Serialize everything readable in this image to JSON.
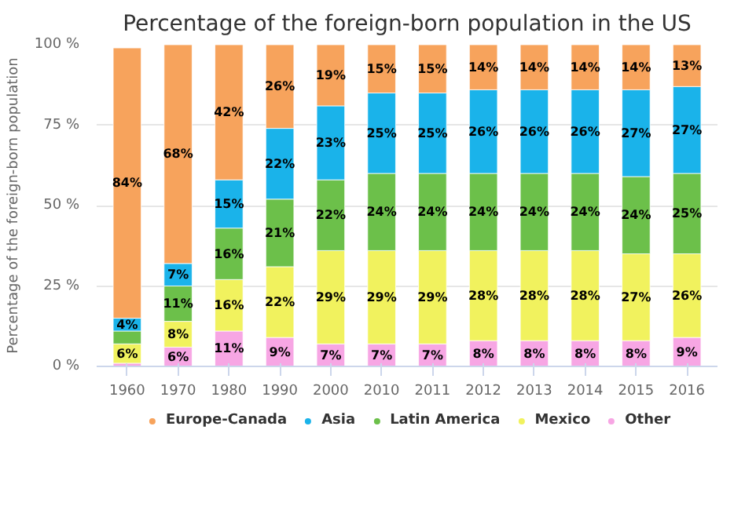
{
  "chart_data": {
    "type": "bar",
    "stacked": true,
    "title": "Percentage of the foreign-born population in the US",
    "ylabel": "Percentage of the foreign-born population",
    "categories": [
      "1960",
      "1970",
      "1980",
      "1990",
      "2000",
      "2010",
      "2011",
      "2012",
      "2013",
      "2014",
      "2015",
      "2016"
    ],
    "series": [
      {
        "name": "Other",
        "color": "#f7a6e4",
        "values": [
          1,
          6,
          11,
          9,
          7,
          7,
          7,
          8,
          8,
          8,
          8,
          9
        ],
        "value_labels": [
          null,
          "6%",
          "11%",
          "9%",
          "7%",
          "7%",
          "7%",
          "8%",
          "8%",
          "8%",
          "8%",
          "9%"
        ]
      },
      {
        "name": "Mexico",
        "color": "#f1f25e",
        "values": [
          6,
          8,
          16,
          22,
          29,
          29,
          29,
          28,
          28,
          28,
          27,
          26
        ],
        "value_labels": [
          "6%",
          "8%",
          "16%",
          "22%",
          "29%",
          "29%",
          "29%",
          "28%",
          "28%",
          "28%",
          "27%",
          "26%"
        ]
      },
      {
        "name": "Latin America",
        "color": "#6cc04a",
        "values": [
          4,
          11,
          16,
          21,
          22,
          24,
          24,
          24,
          24,
          24,
          24,
          25
        ],
        "value_labels": [
          null,
          "11%",
          "16%",
          "21%",
          "22%",
          "24%",
          "24%",
          "24%",
          "24%",
          "24%",
          "24%",
          "25%"
        ]
      },
      {
        "name": "Asia",
        "color": "#1ab3ea",
        "values": [
          4,
          7,
          15,
          22,
          23,
          25,
          25,
          26,
          26,
          26,
          27,
          27
        ],
        "value_labels": [
          "4%",
          "7%",
          "15%",
          "22%",
          "23%",
          "25%",
          "25%",
          "26%",
          "26%",
          "26%",
          "27%",
          "27%"
        ]
      },
      {
        "name": "Europe-Canada",
        "color": "#f7a35c",
        "values": [
          84,
          68,
          42,
          26,
          19,
          15,
          15,
          14,
          14,
          14,
          14,
          13
        ],
        "value_labels": [
          "84%",
          "68%",
          "42%",
          "26%",
          "19%",
          "15%",
          "15%",
          "14%",
          "14%",
          "14%",
          "14%",
          "13%"
        ]
      }
    ],
    "ylim": [
      0,
      100
    ],
    "yticks": [
      {
        "value": 0,
        "label": "0 %"
      },
      {
        "value": 25,
        "label": "25 %"
      },
      {
        "value": 50,
        "label": "50 %"
      },
      {
        "value": 75,
        "label": "75 %"
      },
      {
        "value": 100,
        "label": "100 %"
      }
    ],
    "grid": "y",
    "legend": "bottom"
  }
}
